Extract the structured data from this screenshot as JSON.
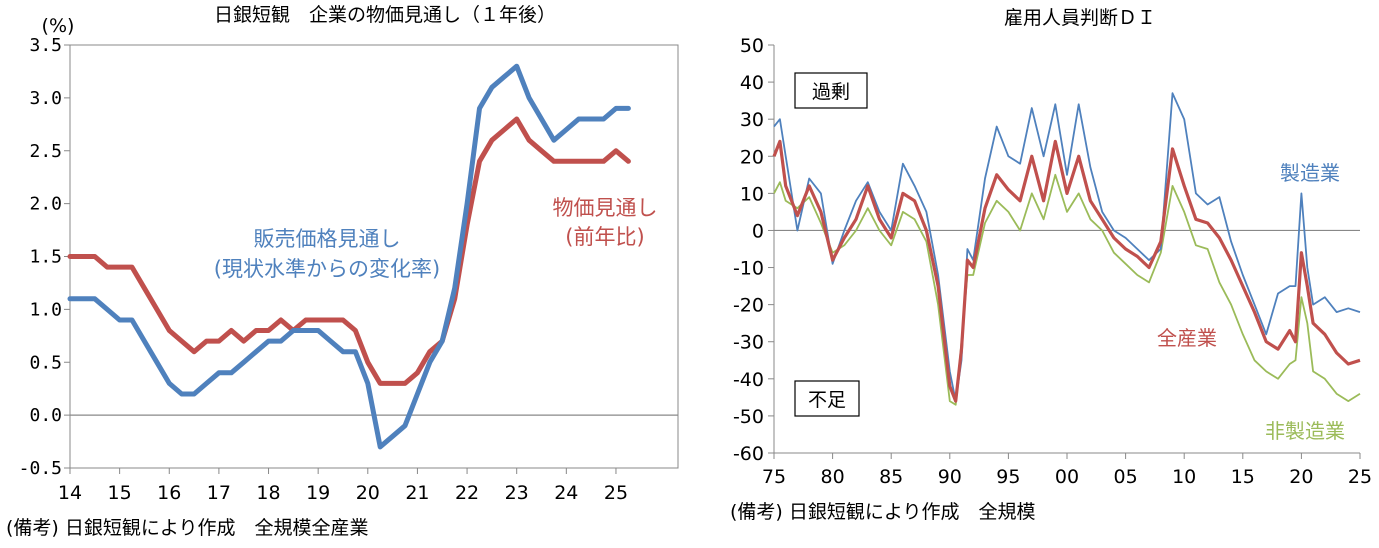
{
  "chart_data": [
    {
      "type": "line",
      "title": "日銀短観　企業の物価見通し（１年後）",
      "ylabel": "(%)",
      "xlabel": "",
      "ylim": [
        -0.5,
        3.5
      ],
      "yticks": [
        "3.5",
        "3.0",
        "2.5",
        "2.0",
        "1.5",
        "1.0",
        "0.5",
        "0.0",
        "-0.5"
      ],
      "xticks": [
        "14",
        "15",
        "16",
        "17",
        "18",
        "19",
        "20",
        "21",
        "22",
        "23",
        "24",
        "25"
      ],
      "note": "(備考) 日銀短観により作成　全規模全産業",
      "series": [
        {
          "name": "物価見通し",
          "label_line1": "物価見通し",
          "label_line2": "(前年比)",
          "color": "#c0504d",
          "x": [
            14.0,
            14.25,
            14.5,
            14.75,
            15.0,
            15.25,
            15.5,
            15.75,
            16.0,
            16.25,
            16.5,
            16.75,
            17.0,
            17.25,
            17.5,
            17.75,
            18.0,
            18.25,
            18.5,
            18.75,
            19.0,
            19.25,
            19.5,
            19.75,
            20.0,
            20.25,
            20.5,
            20.75,
            21.0,
            21.25,
            21.5,
            21.75,
            22.0,
            22.25,
            22.5,
            22.75,
            23.0,
            23.25,
            23.5,
            23.75,
            24.0,
            24.25,
            24.5,
            24.75,
            25.0,
            25.25
          ],
          "values": [
            1.5,
            1.5,
            1.5,
            1.4,
            1.4,
            1.4,
            1.2,
            1.0,
            0.8,
            0.7,
            0.6,
            0.7,
            0.7,
            0.8,
            0.7,
            0.8,
            0.8,
            0.9,
            0.8,
            0.9,
            0.9,
            0.9,
            0.9,
            0.8,
            0.5,
            0.3,
            0.3,
            0.3,
            0.4,
            0.6,
            0.7,
            1.1,
            1.8,
            2.4,
            2.6,
            2.7,
            2.8,
            2.6,
            2.5,
            2.4,
            2.4,
            2.4,
            2.4,
            2.4,
            2.5,
            2.4
          ]
        },
        {
          "name": "販売価格見通し",
          "label_line1": "販売価格見通し",
          "label_line2": "(現状水準からの変化率)",
          "color": "#4f81bd",
          "x": [
            14.0,
            14.25,
            14.5,
            14.75,
            15.0,
            15.25,
            15.5,
            15.75,
            16.0,
            16.25,
            16.5,
            16.75,
            17.0,
            17.25,
            17.5,
            17.75,
            18.0,
            18.25,
            18.5,
            18.75,
            19.0,
            19.25,
            19.5,
            19.75,
            20.0,
            20.25,
            20.5,
            20.75,
            21.0,
            21.25,
            21.5,
            21.75,
            22.0,
            22.25,
            22.5,
            22.75,
            23.0,
            23.25,
            23.5,
            23.75,
            24.0,
            24.25,
            24.5,
            24.75,
            25.0,
            25.25
          ],
          "values": [
            1.1,
            1.1,
            1.1,
            1.0,
            0.9,
            0.9,
            0.7,
            0.5,
            0.3,
            0.2,
            0.2,
            0.3,
            0.4,
            0.4,
            0.5,
            0.6,
            0.7,
            0.7,
            0.8,
            0.8,
            0.8,
            0.7,
            0.6,
            0.6,
            0.3,
            -0.3,
            -0.2,
            -0.1,
            0.2,
            0.5,
            0.7,
            1.2,
            2.0,
            2.9,
            3.1,
            3.2,
            3.3,
            3.0,
            2.8,
            2.6,
            2.7,
            2.8,
            2.8,
            2.8,
            2.9,
            2.9
          ]
        }
      ]
    },
    {
      "type": "line",
      "title": "雇用人員判断ＤＩ",
      "ylabel": "",
      "xlabel": "",
      "ylim": [
        -60,
        50
      ],
      "yticks": [
        "50",
        "40",
        "30",
        "20",
        "10",
        "0",
        "-10",
        "-20",
        "-30",
        "-40",
        "-50",
        "-60"
      ],
      "xticks": [
        "75",
        "80",
        "85",
        "90",
        "95",
        "00",
        "05",
        "10",
        "15",
        "20",
        "25"
      ],
      "annotations": {
        "surplus": "過剰",
        "shortage": "不足"
      },
      "note": "(備考) 日銀短観により作成　全規模",
      "series": [
        {
          "name": "製造業",
          "color": "#4f81bd",
          "x": [
            1975,
            1975.5,
            1976,
            1977,
            1978,
            1979,
            1980,
            1981,
            1982,
            1983,
            1984,
            1985,
            1986,
            1987,
            1988,
            1989,
            1990,
            1990.5,
            1991,
            1991.5,
            1992,
            1993,
            1994,
            1995,
            1996,
            1997,
            1998,
            1999,
            2000,
            2001,
            2002,
            2003,
            2004,
            2005,
            2006,
            2007,
            2008,
            2009,
            2010,
            2011,
            2012,
            2013,
            2014,
            2015,
            2016,
            2017,
            2018,
            2019,
            2019.5,
            2020,
            2020.5,
            2021,
            2022,
            2023,
            2024,
            2025
          ],
          "values": [
            28,
            30,
            20,
            0,
            14,
            10,
            -9,
            0,
            8,
            13,
            5,
            0,
            18,
            12,
            5,
            -12,
            -38,
            -46,
            -35,
            -5,
            -8,
            14,
            28,
            20,
            18,
            33,
            20,
            34,
            15,
            34,
            17,
            5,
            0,
            -2,
            -5,
            -8,
            -5,
            37,
            30,
            10,
            7,
            9,
            -3,
            -12,
            -20,
            -28,
            -17,
            -15,
            -15,
            10,
            -10,
            -20,
            -18,
            -22,
            -21,
            -22
          ]
        },
        {
          "name": "全産業",
          "color": "#c0504d",
          "x": [
            1975,
            1975.5,
            1976,
            1977,
            1978,
            1979,
            1980,
            1981,
            1982,
            1983,
            1984,
            1985,
            1986,
            1987,
            1988,
            1989,
            1990,
            1990.5,
            1991,
            1991.5,
            1992,
            1993,
            1994,
            1995,
            1996,
            1997,
            1998,
            1999,
            2000,
            2001,
            2002,
            2003,
            2004,
            2005,
            2006,
            2007,
            2008,
            2009,
            2010,
            2011,
            2012,
            2013,
            2014,
            2015,
            2016,
            2017,
            2018,
            2019,
            2019.5,
            2020,
            2020.5,
            2021,
            2022,
            2023,
            2024,
            2025
          ],
          "values": [
            20,
            24,
            12,
            4,
            12,
            5,
            -8,
            -2,
            3,
            12,
            3,
            -2,
            10,
            8,
            0,
            -15,
            -42,
            -46,
            -32,
            -8,
            -10,
            6,
            15,
            11,
            8,
            20,
            8,
            24,
            10,
            20,
            8,
            3,
            -2,
            -5,
            -7,
            -10,
            -3,
            22,
            12,
            3,
            2,
            -2,
            -8,
            -15,
            -22,
            -30,
            -32,
            -27,
            -30,
            -6,
            -15,
            -25,
            -28,
            -33,
            -36,
            -35
          ]
        },
        {
          "name": "非製造業",
          "color": "#9bbb59",
          "x": [
            1975,
            1975.5,
            1976,
            1977,
            1978,
            1979,
            1980,
            1981,
            1982,
            1983,
            1984,
            1985,
            1986,
            1987,
            1988,
            1989,
            1990,
            1990.5,
            1991,
            1991.5,
            1992,
            1993,
            1994,
            1995,
            1996,
            1997,
            1998,
            1999,
            2000,
            2001,
            2002,
            2003,
            2004,
            2005,
            2006,
            2007,
            2008,
            2009,
            2010,
            2011,
            2012,
            2013,
            2014,
            2015,
            2016,
            2017,
            2018,
            2019,
            2019.5,
            2020,
            2020.5,
            2021,
            2022,
            2023,
            2024,
            2025
          ],
          "values": [
            10,
            13,
            8,
            6,
            9,
            2,
            -6,
            -4,
            0,
            6,
            0,
            -4,
            5,
            3,
            -3,
            -20,
            -46,
            -47,
            -30,
            -12,
            -12,
            2,
            8,
            5,
            0,
            10,
            3,
            15,
            5,
            10,
            3,
            0,
            -6,
            -9,
            -12,
            -14,
            -6,
            12,
            5,
            -4,
            -5,
            -14,
            -20,
            -28,
            -35,
            -38,
            -40,
            -36,
            -35,
            -18,
            -25,
            -38,
            -40,
            -44,
            -46,
            -44
          ]
        }
      ]
    }
  ]
}
